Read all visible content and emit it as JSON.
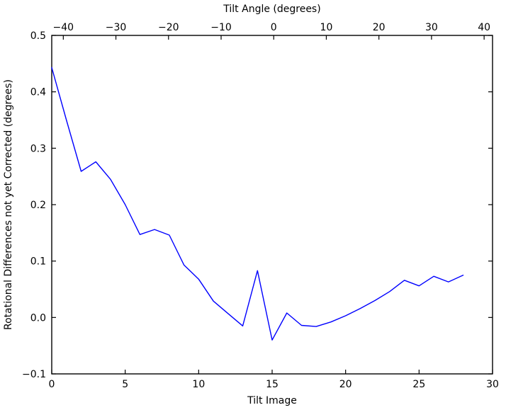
{
  "figure": {
    "background": "#ffffff",
    "text_color": "#000000"
  },
  "chart_data": {
    "type": "line",
    "title": "",
    "xlabel": "Tilt Image",
    "ylabel": "Rotational Differences not yet Corrected (degrees)",
    "top_xlabel": "Tilt Angle (degrees)",
    "x": [
      0,
      1,
      2,
      3,
      4,
      5,
      6,
      7,
      8,
      9,
      10,
      11,
      12,
      13,
      14,
      15,
      16,
      17,
      18,
      19,
      20,
      21,
      22,
      23,
      24,
      25,
      26,
      27,
      28
    ],
    "y": [
      0.443,
      0.35,
      0.259,
      0.276,
      0.245,
      0.2,
      0.147,
      0.156,
      0.146,
      0.093,
      0.068,
      0.029,
      0.007,
      -0.015,
      0.083,
      -0.04,
      0.008,
      -0.014,
      -0.016,
      -0.008,
      0.003,
      0.016,
      0.03,
      0.046,
      0.066,
      0.056,
      0.073,
      0.063,
      0.075
    ],
    "xlim": [
      0,
      30
    ],
    "ylim": [
      -0.1,
      0.5
    ],
    "top_xlim": [
      -42.2,
      41.6
    ],
    "x_ticks": [
      0,
      5,
      10,
      15,
      20,
      25,
      30
    ],
    "y_ticks": [
      -0.1,
      0.0,
      0.1,
      0.2,
      0.3,
      0.4,
      0.5
    ],
    "top_x_ticks": [
      -40,
      -30,
      -20,
      -10,
      0,
      10,
      20,
      30,
      40
    ],
    "line_color": "#0000ff",
    "axis_color": "#000000",
    "grid": false,
    "legend": "none"
  }
}
